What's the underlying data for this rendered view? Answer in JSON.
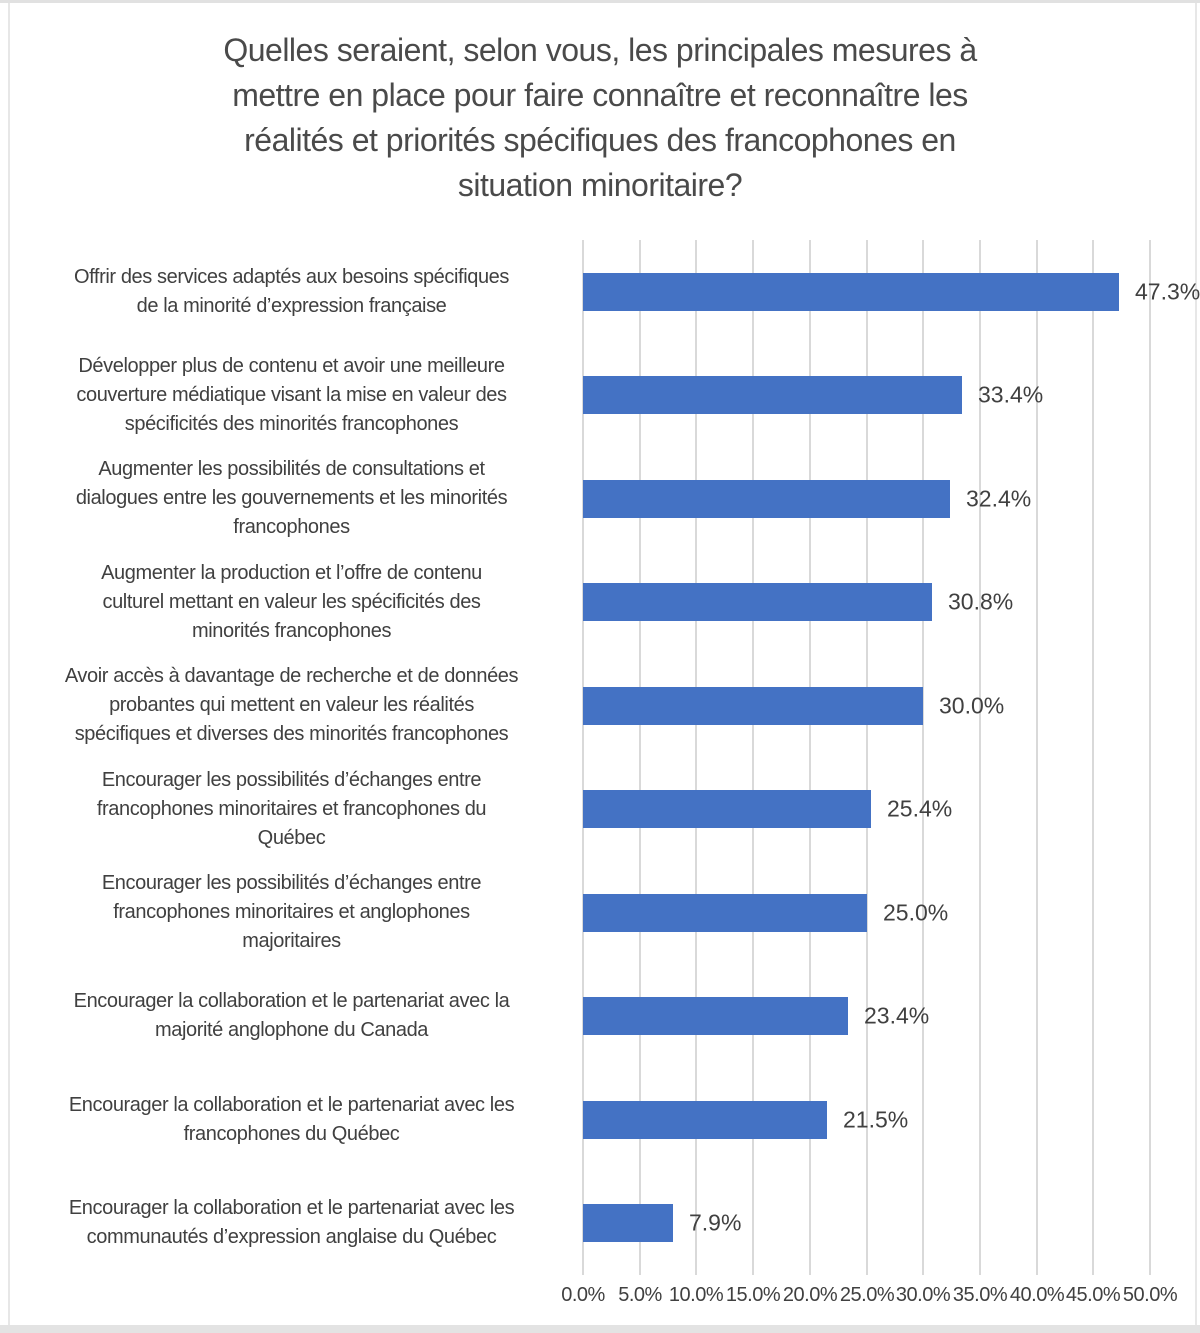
{
  "chart_data": {
    "type": "bar",
    "orientation": "horizontal",
    "title": "Quelles seraient, selon vous, les principales mesures à mettre en place pour faire connaître et reconnaître les réalités et priorités spécifiques des francophones en situation minoritaire?",
    "title_lines": [
      "Quelles seraient, selon vous, les principales mesures à",
      "mettre en place pour faire connaître et reconnaître les",
      "réalités et priorités spécifiques des francophones en",
      "situation minoritaire?"
    ],
    "categories": [
      "Offrir des services adaptés aux besoins spécifiques de la minorité d’expression française",
      "Développer plus de contenu et avoir une meilleure couverture médiatique visant la mise en valeur des spécificités des minorités francophones",
      "Augmenter les possibilités de consultations et dialogues entre les gouvernements et les minorités francophones",
      "Augmenter la production et l’offre de contenu culturel mettant en valeur les spécificités des minorités francophones",
      "Avoir accès à davantage de recherche et de données probantes qui mettent en valeur les réalités spécifiques et diverses des minorités francophones",
      "Encourager les possibilités d’échanges entre francophones minoritaires et francophones du Québec",
      "Encourager les possibilités d’échanges entre francophones minoritaires et anglophones majoritaires",
      "Encourager la collaboration et le partenariat avec la majorité anglophone du Canada",
      "Encourager la collaboration et le partenariat avec les francophones du Québec",
      "Encourager la collaboration et le partenariat avec les communautés d’expression anglaise du Québec"
    ],
    "category_lines": [
      [
        "Offrir des services adaptés aux besoins spécifiques",
        "de la minorité d’expression française"
      ],
      [
        "Développer plus de contenu et avoir une meilleure",
        "couverture médiatique visant la mise en valeur des",
        "spécificités des minorités francophones"
      ],
      [
        "Augmenter les possibilités de consultations et",
        "dialogues entre les gouvernements et les minorités",
        "francophones"
      ],
      [
        "Augmenter la production et l’offre de contenu",
        "culturel mettant en valeur les spécificités des",
        "minorités francophones"
      ],
      [
        "Avoir accès à davantage de recherche et de données",
        "probantes qui mettent en valeur les réalités",
        "spécifiques et diverses des minorités francophones"
      ],
      [
        "Encourager les possibilités d’échanges entre",
        "francophones minoritaires et francophones du",
        "Québec"
      ],
      [
        "Encourager les possibilités d’échanges entre",
        "francophones minoritaires et anglophones",
        "majoritaires"
      ],
      [
        "Encourager la collaboration et le partenariat avec la",
        "majorité anglophone du Canada"
      ],
      [
        "Encourager la collaboration et le partenariat avec les",
        "francophones du Québec"
      ],
      [
        "Encourager la collaboration et le partenariat avec les",
        "communautés d’expression anglaise du Québec"
      ]
    ],
    "values": [
      47.3,
      33.4,
      32.4,
      30.8,
      30.0,
      25.4,
      25.0,
      23.4,
      21.5,
      7.9
    ],
    "value_labels": [
      "47.3%",
      "33.4%",
      "32.4%",
      "30.8%",
      "30.0%",
      "25.4%",
      "25.0%",
      "23.4%",
      "21.5%",
      "7.9%"
    ],
    "xlabel": "",
    "ylabel": "",
    "xlim": [
      0,
      50
    ],
    "x_tick_labels": [
      "0.0%",
      "5.0%",
      "10.0%",
      "15.0%",
      "20.0%",
      "25.0%",
      "30.0%",
      "35.0%",
      "40.0%",
      "45.0%",
      "50.0%"
    ],
    "grid": "vertical",
    "legend": "none",
    "colors": {
      "bar": "#4472C4",
      "text": "#404040",
      "title_text": "#4A4A4A",
      "gridline": "#D9D9D9",
      "frame": "#E3E3E3",
      "background": "#FFFFFF"
    }
  }
}
